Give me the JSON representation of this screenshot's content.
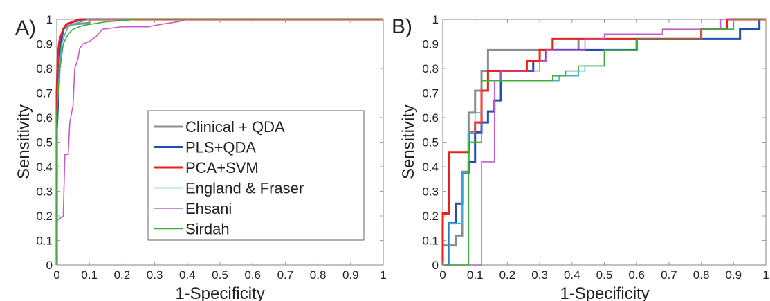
{
  "chart_data": [
    {
      "type": "line",
      "panel_label": "A)",
      "xlabel": "1-Specificity",
      "ylabel": "Sensitivity",
      "xlim": [
        0,
        1
      ],
      "ylim": [
        0,
        1
      ],
      "xticks": [
        0,
        0.1,
        0.2,
        0.3,
        0.4,
        0.5,
        0.6,
        0.7,
        0.8,
        0.9,
        1
      ],
      "yticks": [
        0,
        0.1,
        0.2,
        0.3,
        0.4,
        0.5,
        0.6,
        0.7,
        0.8,
        0.9,
        1
      ],
      "xtick_labels": [
        "0",
        "0.1",
        "0.2",
        "0.3",
        "0.4",
        "0.5",
        "0.6",
        "0.7",
        "0.8",
        "0.9",
        "1"
      ],
      "ytick_labels": [
        "0",
        "0.1",
        "0.2",
        "0.3",
        "0.4",
        "0.5",
        "0.6",
        "0.7",
        "0.8",
        "0.9",
        "1"
      ],
      "grid": false,
      "legend": "lower-right",
      "series": [
        {
          "name": "Clinical + QDA",
          "color": "#8c8c8c",
          "width": 3,
          "points": [
            [
              0,
              0
            ],
            [
              0,
              0.6
            ],
            [
              0.005,
              0.75
            ],
            [
              0.01,
              0.88
            ],
            [
              0.015,
              0.93
            ],
            [
              0.02,
              0.96
            ],
            [
              0.03,
              0.97
            ],
            [
              0.05,
              0.98
            ],
            [
              0.1,
              0.985
            ],
            [
              0.1,
              1
            ],
            [
              1,
              1
            ]
          ]
        },
        {
          "name": "PLS+QDA",
          "color": "#1f4fb4",
          "width": 3,
          "points": [
            [
              0,
              0
            ],
            [
              0,
              0.55
            ],
            [
              0.005,
              0.7
            ],
            [
              0.01,
              0.85
            ],
            [
              0.015,
              0.92
            ],
            [
              0.02,
              0.96
            ],
            [
              0.03,
              0.98
            ],
            [
              0.05,
              0.99
            ],
            [
              0.08,
              1
            ],
            [
              1,
              1
            ]
          ]
        },
        {
          "name": "PCA+SVM",
          "color": "#e8211c",
          "width": 3,
          "points": [
            [
              0,
              0
            ],
            [
              0,
              0.7
            ],
            [
              0.003,
              0.85
            ],
            [
              0.008,
              0.91
            ],
            [
              0.012,
              0.93
            ],
            [
              0.02,
              0.96
            ],
            [
              0.03,
              0.98
            ],
            [
              0.05,
              0.99
            ],
            [
              0.07,
              1
            ],
            [
              1,
              1
            ]
          ]
        },
        {
          "name": "England & Fraser",
          "color": "#3cb4d6",
          "width": 1.6,
          "points": [
            [
              0,
              0
            ],
            [
              0,
              0.6
            ],
            [
              0.008,
              0.8
            ],
            [
              0.015,
              0.9
            ],
            [
              0.025,
              0.94
            ],
            [
              0.035,
              0.97
            ],
            [
              0.06,
              0.985
            ],
            [
              0.1,
              1
            ],
            [
              1,
              1
            ]
          ]
        },
        {
          "name": "Ehsani",
          "color": "#c45ec8",
          "width": 1.6,
          "points": [
            [
              0,
              0
            ],
            [
              0,
              0.18
            ],
            [
              0.01,
              0.19
            ],
            [
              0.02,
              0.2
            ],
            [
              0.025,
              0.45
            ],
            [
              0.035,
              0.45
            ],
            [
              0.04,
              0.58
            ],
            [
              0.05,
              0.65
            ],
            [
              0.055,
              0.8
            ],
            [
              0.065,
              0.84
            ],
            [
              0.07,
              0.88
            ],
            [
              0.08,
              0.9
            ],
            [
              0.1,
              0.91
            ],
            [
              0.12,
              0.93
            ],
            [
              0.14,
              0.96
            ],
            [
              0.2,
              0.97
            ],
            [
              0.28,
              0.97
            ],
            [
              0.32,
              0.98
            ],
            [
              0.37,
              0.99
            ],
            [
              0.4,
              1
            ],
            [
              1,
              1
            ]
          ]
        },
        {
          "name": "Sirdah",
          "color": "#3fae3a",
          "width": 1.6,
          "points": [
            [
              0,
              0
            ],
            [
              0,
              0.62
            ],
            [
              0.01,
              0.8
            ],
            [
              0.02,
              0.9
            ],
            [
              0.035,
              0.94
            ],
            [
              0.05,
              0.96
            ],
            [
              0.08,
              0.975
            ],
            [
              0.15,
              0.99
            ],
            [
              0.25,
              1
            ],
            [
              1,
              1
            ]
          ]
        }
      ]
    },
    {
      "type": "line",
      "panel_label": "B)",
      "xlabel": "1-Specificity",
      "ylabel": "Sensitivity",
      "xlim": [
        0,
        1
      ],
      "ylim": [
        0,
        1
      ],
      "xticks": [
        0,
        0.1,
        0.2,
        0.3,
        0.4,
        0.5,
        0.6,
        0.7,
        0.8,
        0.9,
        1
      ],
      "yticks": [
        0,
        0.1,
        0.2,
        0.3,
        0.4,
        0.5,
        0.6,
        0.7,
        0.8,
        0.9,
        1
      ],
      "xtick_labels": [
        "0",
        "0.1",
        "0.2",
        "0.3",
        "0.4",
        "0.5",
        "0.6",
        "0.7",
        "0.8",
        "0.9",
        "1"
      ],
      "ytick_labels": [
        "0",
        "0.1",
        "0.2",
        "0.3",
        "0.4",
        "0.5",
        "0.6",
        "0.7",
        "0.8",
        "0.9",
        "1"
      ],
      "grid": false,
      "legend": "none",
      "series": [
        {
          "name": "Clinical + QDA",
          "color": "#8c8c8c",
          "width": 3,
          "points": [
            [
              0,
              0
            ],
            [
              0,
              0.08
            ],
            [
              0.04,
              0.08
            ],
            [
              0.04,
              0.12
            ],
            [
              0.06,
              0.12
            ],
            [
              0.06,
              0.38
            ],
            [
              0.08,
              0.38
            ],
            [
              0.08,
              0.62
            ],
            [
              0.1,
              0.62
            ],
            [
              0.1,
              0.71
            ],
            [
              0.12,
              0.71
            ],
            [
              0.12,
              0.79
            ],
            [
              0.14,
              0.79
            ],
            [
              0.14,
              0.875
            ],
            [
              0.42,
              0.875
            ],
            [
              0.42,
              0.92
            ],
            [
              0.8,
              0.92
            ],
            [
              0.8,
              0.96
            ],
            [
              0.88,
              0.96
            ],
            [
              0.88,
              1
            ],
            [
              1,
              1
            ]
          ]
        },
        {
          "name": "PLS+QDA",
          "color": "#1f4fb4",
          "width": 3,
          "points": [
            [
              0,
              0
            ],
            [
              0.02,
              0
            ],
            [
              0.02,
              0.17
            ],
            [
              0.04,
              0.17
            ],
            [
              0.04,
              0.25
            ],
            [
              0.06,
              0.25
            ],
            [
              0.06,
              0.375
            ],
            [
              0.08,
              0.375
            ],
            [
              0.08,
              0.42
            ],
            [
              0.1,
              0.42
            ],
            [
              0.1,
              0.54
            ],
            [
              0.12,
              0.54
            ],
            [
              0.12,
              0.58
            ],
            [
              0.14,
              0.58
            ],
            [
              0.14,
              0.625
            ],
            [
              0.16,
              0.625
            ],
            [
              0.16,
              0.67
            ],
            [
              0.18,
              0.67
            ],
            [
              0.18,
              0.79
            ],
            [
              0.28,
              0.79
            ],
            [
              0.28,
              0.83
            ],
            [
              0.32,
              0.83
            ],
            [
              0.32,
              0.875
            ],
            [
              0.6,
              0.875
            ],
            [
              0.6,
              0.92
            ],
            [
              0.92,
              0.92
            ],
            [
              0.92,
              0.96
            ],
            [
              0.98,
              0.96
            ],
            [
              0.98,
              1
            ],
            [
              1,
              1
            ]
          ]
        },
        {
          "name": "PCA+SVM",
          "color": "#e8211c",
          "width": 3,
          "points": [
            [
              0,
              0
            ],
            [
              0,
              0.21
            ],
            [
              0.02,
              0.21
            ],
            [
              0.02,
              0.46
            ],
            [
              0.08,
              0.46
            ],
            [
              0.08,
              0.54
            ],
            [
              0.1,
              0.54
            ],
            [
              0.1,
              0.58
            ],
            [
              0.12,
              0.58
            ],
            [
              0.12,
              0.71
            ],
            [
              0.14,
              0.71
            ],
            [
              0.14,
              0.79
            ],
            [
              0.26,
              0.79
            ],
            [
              0.26,
              0.83
            ],
            [
              0.3,
              0.83
            ],
            [
              0.3,
              0.875
            ],
            [
              0.34,
              0.875
            ],
            [
              0.34,
              0.92
            ],
            [
              0.8,
              0.92
            ],
            [
              0.8,
              0.96
            ],
            [
              0.88,
              0.96
            ],
            [
              0.88,
              1
            ],
            [
              1,
              1
            ]
          ]
        },
        {
          "name": "England & Fraser",
          "color": "#3cb4d6",
          "width": 1.6,
          "points": [
            [
              0,
              0
            ],
            [
              0.02,
              0
            ],
            [
              0.02,
              0.17
            ],
            [
              0.06,
              0.17
            ],
            [
              0.06,
              0.375
            ],
            [
              0.08,
              0.375
            ],
            [
              0.08,
              0.54
            ],
            [
              0.1,
              0.54
            ],
            [
              0.1,
              0.62
            ],
            [
              0.12,
              0.62
            ],
            [
              0.12,
              0.75
            ],
            [
              0.36,
              0.75
            ],
            [
              0.36,
              0.77
            ],
            [
              0.42,
              0.77
            ],
            [
              0.42,
              0.79
            ],
            [
              0.44,
              0.79
            ],
            [
              0.44,
              0.81
            ],
            [
              0.5,
              0.81
            ],
            [
              0.5,
              0.875
            ],
            [
              0.6,
              0.875
            ],
            [
              0.6,
              0.92
            ],
            [
              0.8,
              0.92
            ],
            [
              0.8,
              0.96
            ],
            [
              0.9,
              0.96
            ],
            [
              0.9,
              1
            ],
            [
              1,
              1
            ]
          ]
        },
        {
          "name": "Ehsani",
          "color": "#c45ec8",
          "width": 1.6,
          "points": [
            [
              0,
              0
            ],
            [
              0.12,
              0
            ],
            [
              0.12,
              0.42
            ],
            [
              0.16,
              0.42
            ],
            [
              0.16,
              0.75
            ],
            [
              0.18,
              0.75
            ],
            [
              0.18,
              0.79
            ],
            [
              0.3,
              0.79
            ],
            [
              0.3,
              0.83
            ],
            [
              0.32,
              0.83
            ],
            [
              0.32,
              0.875
            ],
            [
              0.44,
              0.875
            ],
            [
              0.44,
              0.92
            ],
            [
              0.5,
              0.92
            ],
            [
              0.5,
              0.94
            ],
            [
              0.68,
              0.94
            ],
            [
              0.68,
              0.96
            ],
            [
              0.86,
              0.96
            ],
            [
              0.86,
              1
            ],
            [
              1,
              1
            ]
          ]
        },
        {
          "name": "Sirdah",
          "color": "#3fae3a",
          "width": 1.6,
          "points": [
            [
              0,
              0
            ],
            [
              0.08,
              0
            ],
            [
              0.08,
              0.5
            ],
            [
              0.12,
              0.5
            ],
            [
              0.12,
              0.75
            ],
            [
              0.34,
              0.75
            ],
            [
              0.34,
              0.77
            ],
            [
              0.38,
              0.77
            ],
            [
              0.38,
              0.79
            ],
            [
              0.42,
              0.79
            ],
            [
              0.42,
              0.81
            ],
            [
              0.5,
              0.81
            ],
            [
              0.5,
              0.875
            ],
            [
              0.6,
              0.875
            ],
            [
              0.6,
              0.92
            ],
            [
              0.8,
              0.92
            ],
            [
              0.8,
              0.96
            ],
            [
              0.9,
              0.96
            ],
            [
              0.9,
              1
            ],
            [
              1,
              1
            ]
          ]
        }
      ]
    }
  ]
}
